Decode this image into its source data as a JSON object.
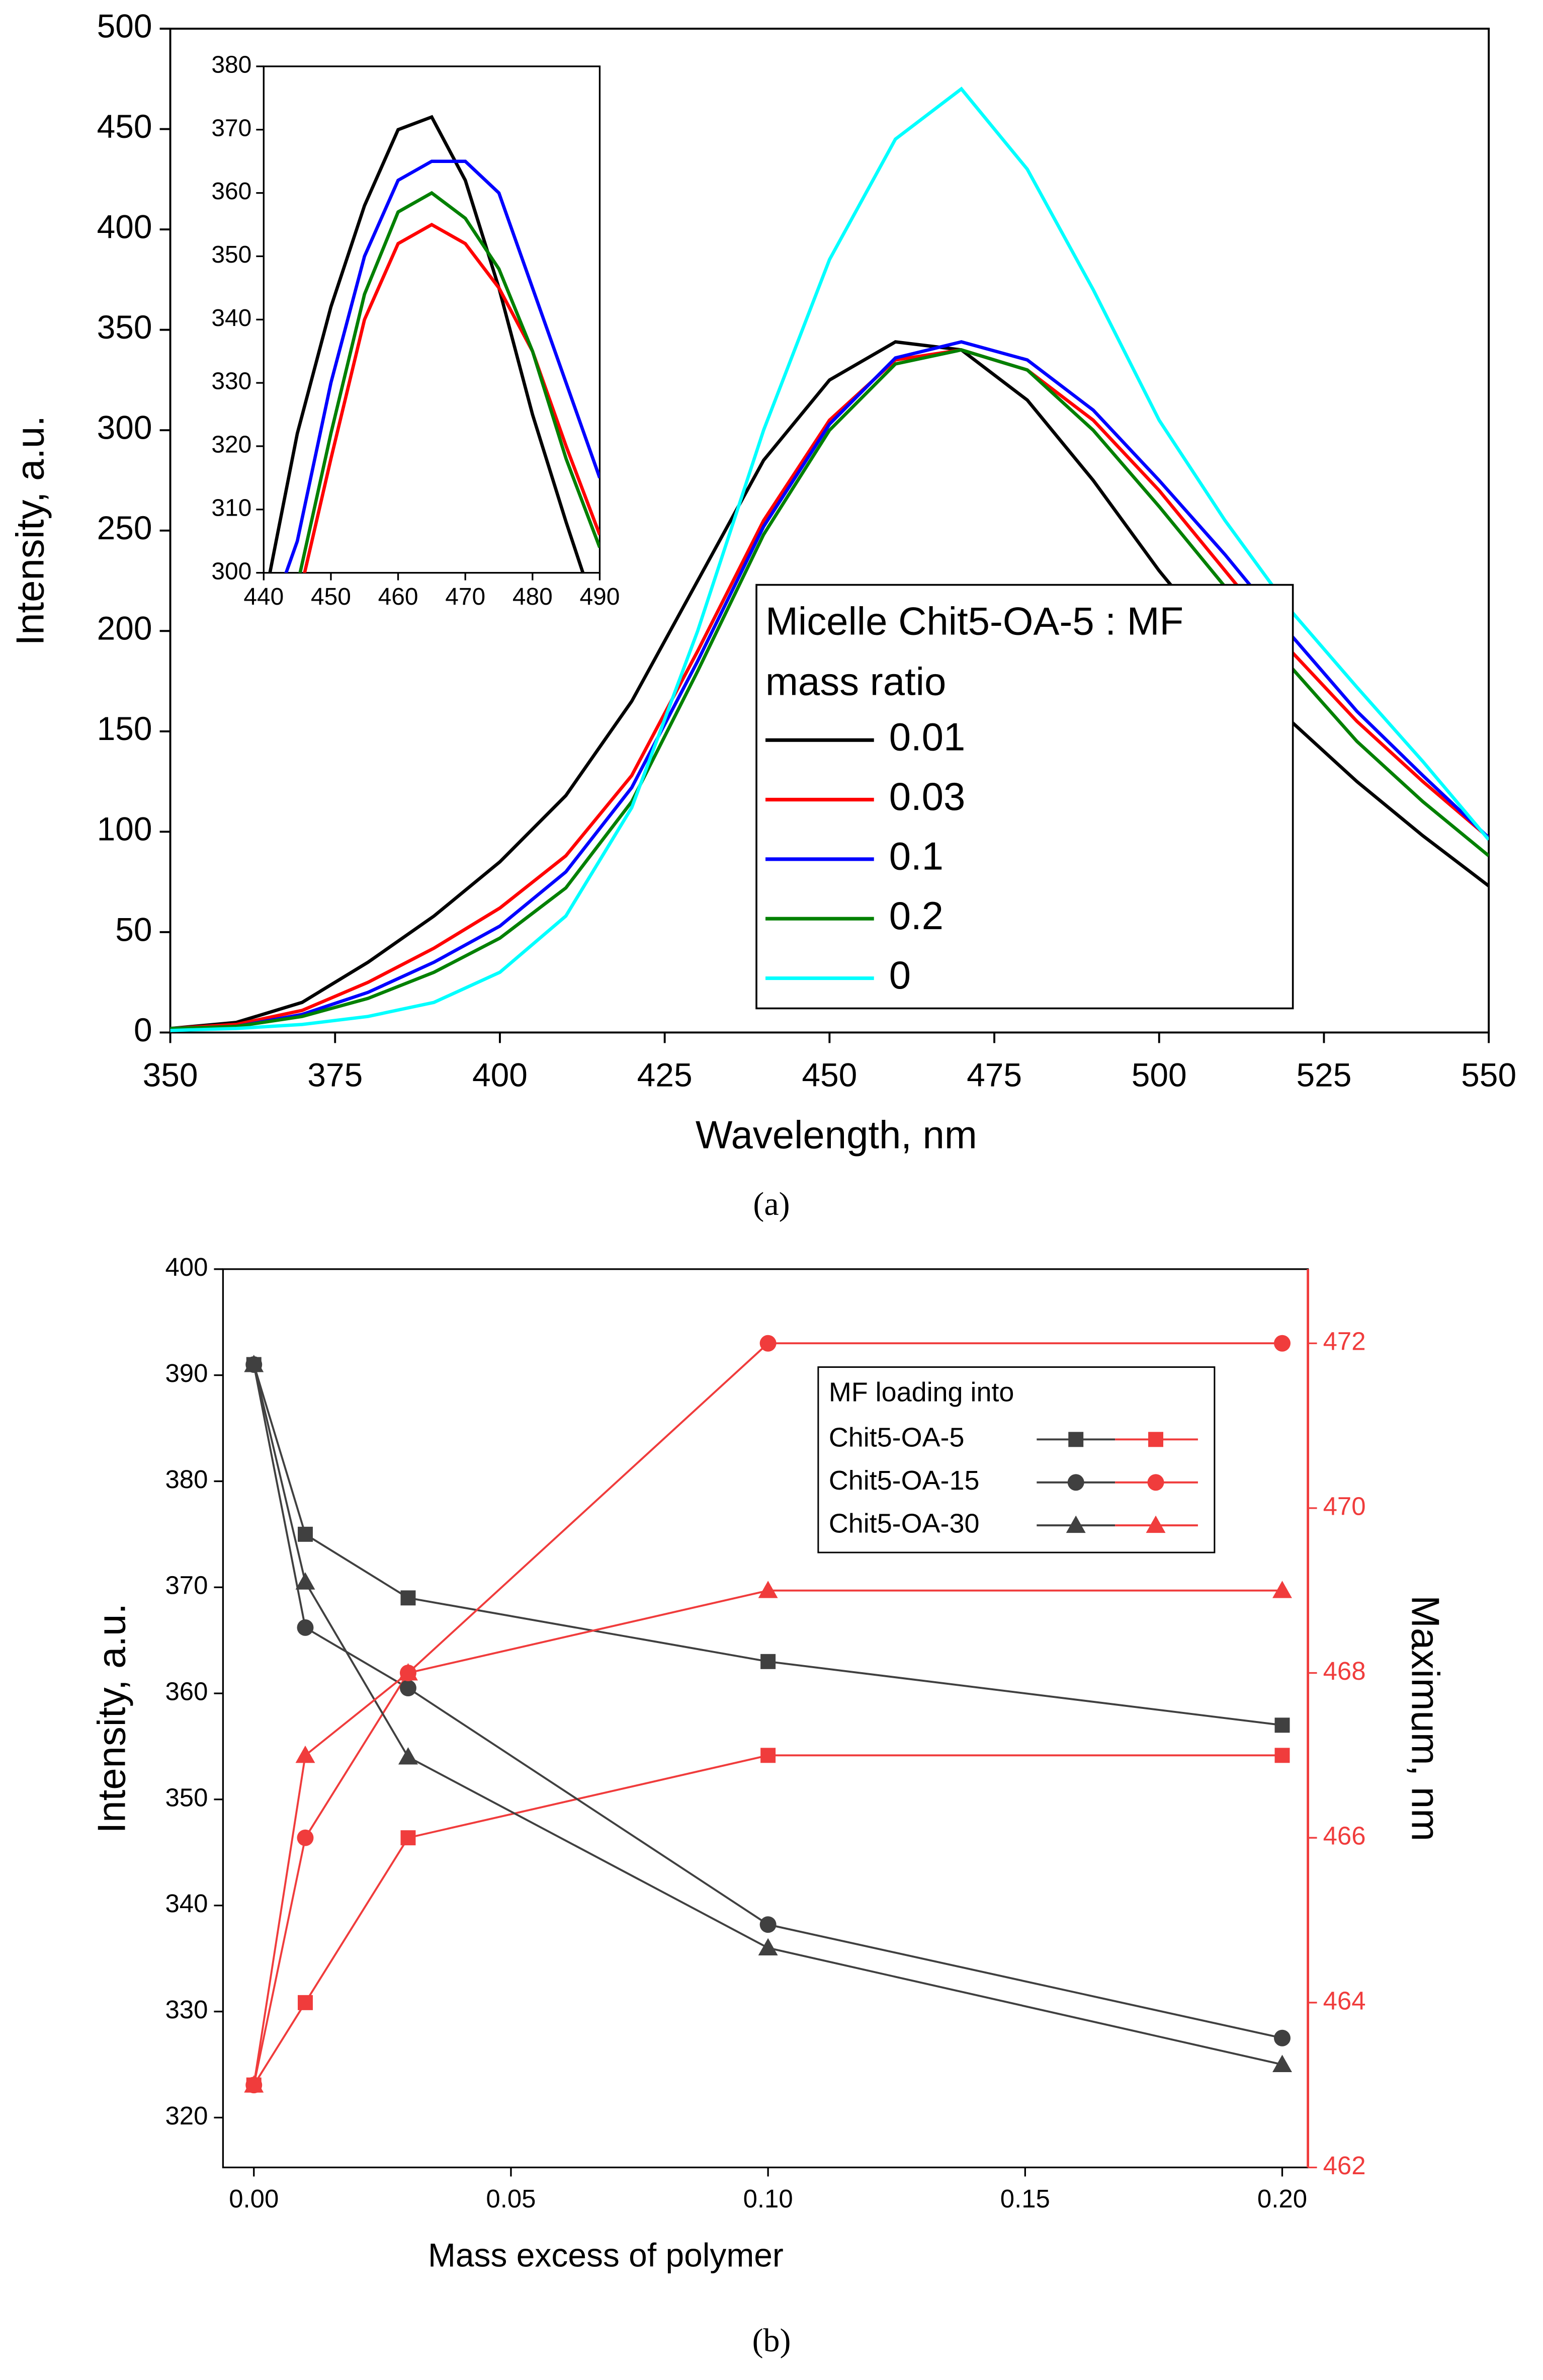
{
  "chart_data": [
    {
      "type": "line",
      "xlabel": "Wavelength, nm",
      "ylabel": "Intensity, a.u.",
      "caption": "(a)",
      "legend_title": "Micelle Chit5-OA-5 : MF mass ratio",
      "xlim": [
        350,
        550
      ],
      "ylim": [
        0,
        500
      ],
      "xticks": [
        350,
        375,
        400,
        425,
        450,
        475,
        500,
        525,
        550
      ],
      "yticks": [
        0,
        50,
        100,
        150,
        200,
        250,
        300,
        350,
        400,
        450,
        500
      ],
      "x": [
        350,
        360,
        370,
        380,
        390,
        400,
        410,
        420,
        430,
        440,
        450,
        460,
        470,
        480,
        490,
        500,
        510,
        520,
        530,
        540,
        550
      ],
      "series": [
        {
          "name": "0.01",
          "color": "#000000",
          "values": [
            2,
            5,
            15,
            35,
            58,
            85,
            118,
            165,
            225,
            285,
            325,
            344,
            340,
            315,
            275,
            230,
            190,
            155,
            125,
            98,
            73
          ]
        },
        {
          "name": "0.03",
          "color": "#ff0000",
          "values": [
            2,
            4,
            11,
            25,
            42,
            62,
            88,
            128,
            190,
            255,
            305,
            335,
            340,
            330,
            305,
            270,
            230,
            190,
            155,
            125,
            97
          ]
        },
        {
          "name": "0.1",
          "color": "#0000ff",
          "values": [
            2,
            3,
            9,
            20,
            35,
            53,
            80,
            122,
            185,
            252,
            303,
            336,
            344,
            335,
            310,
            275,
            238,
            198,
            160,
            128,
            97
          ]
        },
        {
          "name": "0.2",
          "color": "#008000",
          "values": [
            2,
            3,
            8,
            17,
            30,
            47,
            72,
            115,
            180,
            248,
            300,
            333,
            340,
            330,
            300,
            262,
            222,
            182,
            145,
            115,
            88
          ]
        },
        {
          "name": "0",
          "color": "#00ffff",
          "values": [
            1,
            2,
            4,
            8,
            15,
            30,
            58,
            112,
            200,
            300,
            385,
            445,
            470,
            430,
            370,
            305,
            255,
            210,
            172,
            135,
            96
          ]
        }
      ],
      "inset": {
        "xlim": [
          440,
          490
        ],
        "ylim": [
          300,
          380
        ],
        "xticks": [
          440,
          450,
          460,
          470,
          480,
          490
        ],
        "yticks": [
          300,
          310,
          320,
          330,
          340,
          350,
          360,
          370,
          380
        ],
        "x": [
          440,
          445,
          450,
          455,
          460,
          465,
          470,
          475,
          480,
          485,
          490
        ],
        "series": [
          {
            "values": [
              295,
              322,
              342,
              358,
              370,
              372,
              362,
              345,
              325,
              308,
              292
            ]
          },
          {
            "values": [
              282,
              295,
              318,
              340,
              352,
              355,
              352,
              345,
              335,
              320,
              306
            ]
          },
          {
            "values": [
              290,
              305,
              330,
              350,
              362,
              365,
              365,
              360,
              345,
              330,
              315
            ]
          },
          {
            "values": [
              285,
              298,
              322,
              344,
              357,
              360,
              356,
              348,
              335,
              318,
              304
            ]
          }
        ]
      }
    },
    {
      "type": "line",
      "xlabel": "Mass excess of polymer",
      "ylabel": "Intensity, a.u.",
      "y2label": "Maximum, nm",
      "caption": "(b)",
      "legend_title": "MF loading into",
      "xlim": [
        -0.006,
        0.205
      ],
      "ylim": [
        315.3,
        400
      ],
      "y2lim": [
        462,
        472.9
      ],
      "xticks": [
        {
          "value": 0,
          "label": "0.00"
        },
        {
          "value": 0.05,
          "label": "0.05"
        },
        {
          "value": 0.1,
          "label": "0.10"
        },
        {
          "value": 0.15,
          "label": "0.15"
        },
        {
          "value": 0.2,
          "label": "0.20"
        }
      ],
      "yticks": [
        320,
        330,
        340,
        350,
        360,
        370,
        380,
        390,
        400
      ],
      "y2ticks": [
        462,
        464,
        466,
        468,
        470,
        472
      ],
      "x": [
        0,
        0.01,
        0.03,
        0.1,
        0.2
      ],
      "series": [
        {
          "name": "Chit5-OA-5",
          "marker": "square",
          "color": "#404040",
          "values": [
            391,
            375,
            369,
            363,
            357
          ],
          "y2_color": "#f03c3c",
          "y2_values": [
            463,
            464,
            466,
            467,
            467
          ]
        },
        {
          "name": "Chit5-OA-15",
          "marker": "circle",
          "color": "#404040",
          "values": [
            391,
            366.2,
            360.5,
            338.2,
            327.5
          ],
          "y2_color": "#f03c3c",
          "y2_values": [
            463,
            466,
            468,
            472,
            472
          ]
        },
        {
          "name": "Chit5-OA-30",
          "marker": "triangle",
          "color": "#404040",
          "values": [
            391,
            370.5,
            354,
            336,
            325
          ],
          "y2_color": "#f03c3c",
          "y2_values": [
            463,
            467,
            468,
            469,
            469
          ]
        }
      ]
    }
  ]
}
